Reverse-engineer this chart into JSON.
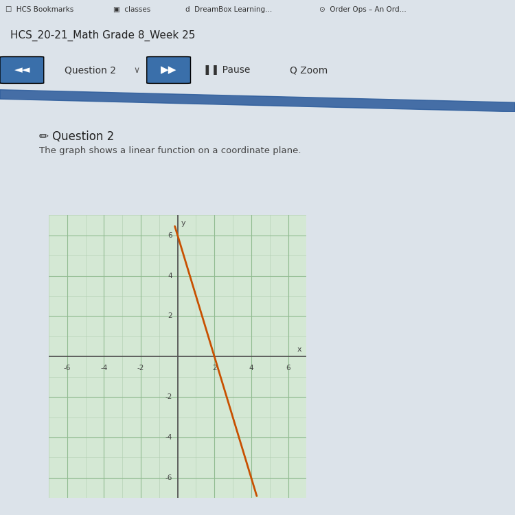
{
  "title_top": "HCS_20-21_Math Grade 8_Week 25",
  "question_label": "Question 2",
  "question_text": "The graph shows a linear function on a coordinate plane.",
  "slope": -3,
  "intercept": 6,
  "x_range": [
    -7,
    7
  ],
  "y_range": [
    -7,
    7
  ],
  "x_ticks": [
    -6,
    -4,
    -2,
    2,
    4,
    6
  ],
  "y_ticks": [
    -6,
    -4,
    -2,
    2,
    4,
    6
  ],
  "line_color": "#c85000",
  "line_x_start": -0.15,
  "line_x_end": 4.3,
  "grid_color": "#b8d8b8",
  "axis_color": "#555555",
  "bg_color": "#dce3ea",
  "plot_bg": "#d4e8d4",
  "content_bg": "#e8ecf0",
  "header_bg": "#c8d0da",
  "nav_bg": "#dde3ea",
  "title_bg": "#d8dfe8",
  "blue_bar_color": "#3a6faa",
  "browser_tab_bg": "#c0cad4",
  "bookmark_bg": "#b8c4d0",
  "white_card_bg": "#f0f2f4",
  "blue_wave_color": "#2a5a9a"
}
